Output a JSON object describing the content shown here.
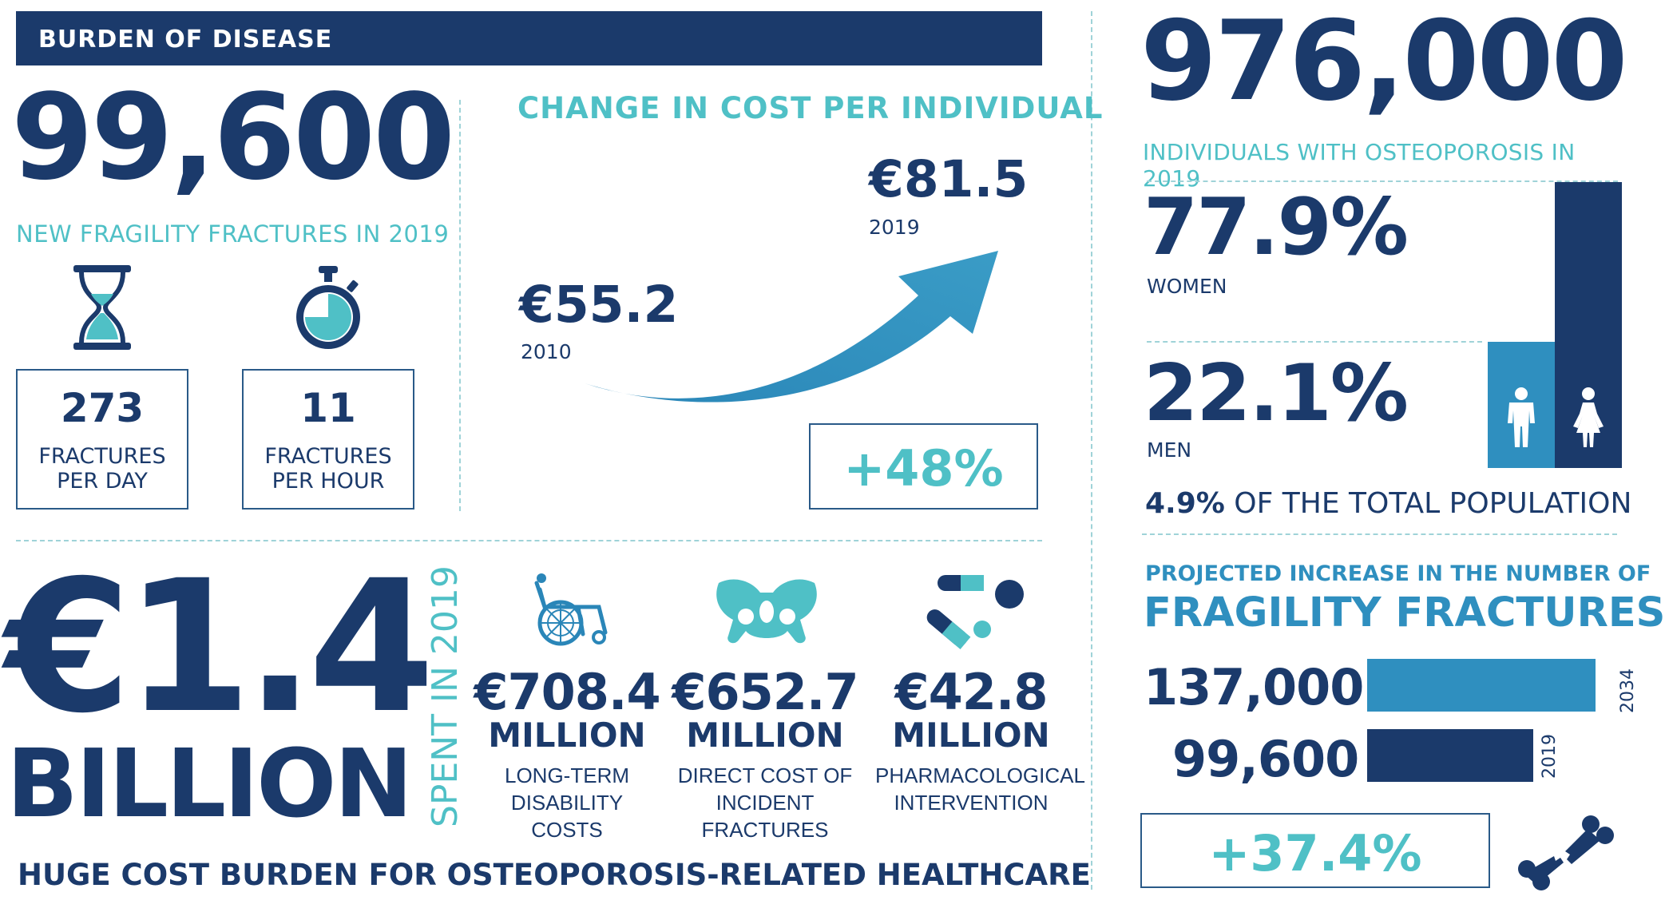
{
  "header": {
    "title": "BURDEN OF DISEASE"
  },
  "fractures": {
    "big_number": "99,600",
    "label": "NEW FRAGILITY FRACTURES IN 2019",
    "per_day": {
      "value": "273",
      "line1": "FRACTURES",
      "line2": "PER DAY",
      "icon": "hourglass-icon"
    },
    "per_hour": {
      "value": "11",
      "line1": "FRACTURES",
      "line2": "PER HOUR",
      "icon": "stopwatch-icon"
    }
  },
  "cost_change": {
    "title": "CHANGE IN COST PER INDIVIDUAL",
    "start_value": "€55.2",
    "start_year": "2010",
    "end_value": "€81.5",
    "end_year": "2019",
    "increase": "+48%"
  },
  "osteoporosis": {
    "big_number": "976,000",
    "label": "INDIVIDUALS WITH OSTEOPOROSIS IN 2019",
    "women_pct": "77.9%",
    "women_label": "WOMEN",
    "women_fraction": 0.779,
    "men_pct": "22.1%",
    "men_label": "MEN",
    "men_fraction": 0.221,
    "population_bold": "4.9%",
    "population_text": "OF THE TOTAL POPULATION"
  },
  "spending": {
    "big_value": "€1.4",
    "big_unit": "BILLION",
    "side_label": "SPENT IN 2019",
    "items": [
      {
        "value": "€708.4",
        "unit": "MILLION",
        "desc": "LONG-TERM DISABILITY COSTS",
        "icon": "wheelchair-icon"
      },
      {
        "value": "€652.7",
        "unit": "MILLION",
        "desc": "DIRECT COST OF INCIDENT FRACTURES",
        "icon": "pelvis-icon"
      },
      {
        "value": "€42.8",
        "unit": "MILLION",
        "desc": "PHARMACOLOGICAL INTERVENTION",
        "icon": "pills-icon"
      }
    ],
    "footer": "HUGE COST BURDEN FOR OSTEOPOROSIS-RELATED HEALTHCARE"
  },
  "projection": {
    "title_small": "PROJECTED INCREASE IN THE NUMBER OF",
    "title_big": "FRAGILITY FRACTURES",
    "bars": [
      {
        "value": "137,000",
        "year": "2034",
        "number": 137000,
        "color": "#2f8fbf"
      },
      {
        "value": "99,600",
        "year": "2019",
        "number": 99600,
        "color": "#1b3a6b"
      }
    ],
    "increase": "+37.4%",
    "icon": "broken-bone-icon"
  }
}
